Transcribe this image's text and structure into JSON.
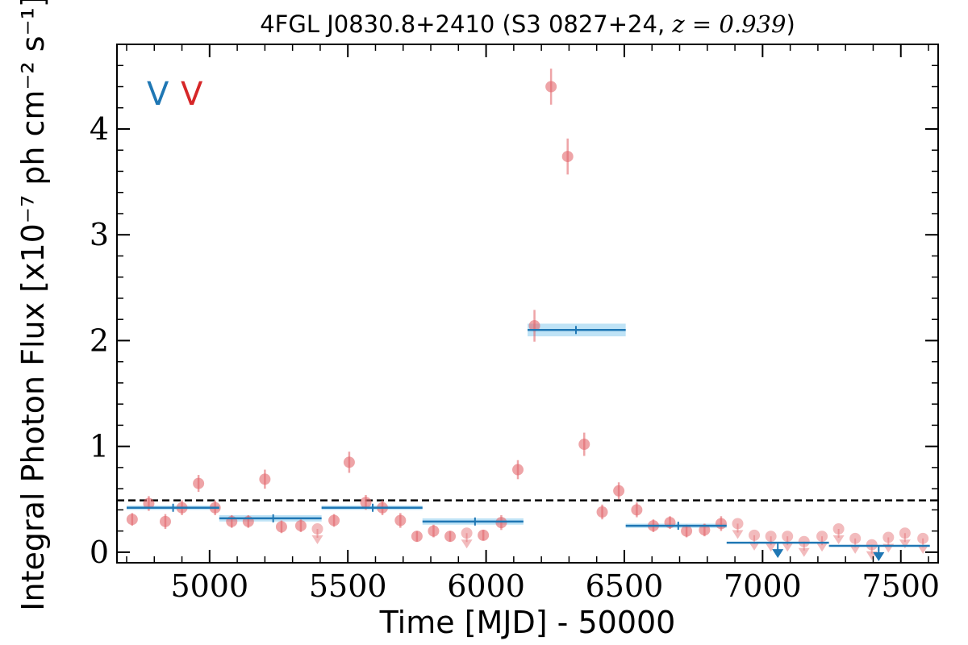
{
  "chart_data": {
    "type": "scatter",
    "title_prefix": "4FGL J0830.8+2410 (S3 0827+24, ",
    "title_math": "z = 0.939",
    "title_suffix": ")",
    "xlabel": "Time [MJD] - 50000",
    "ylabel": "Integral Photon Flux [x10⁻⁷ ph cm⁻² s⁻¹]",
    "xlim": [
      4665,
      7635
    ],
    "ylim": [
      -0.1,
      4.8
    ],
    "xticks": [
      5000,
      5500,
      6000,
      6500,
      7000,
      7500
    ],
    "xtick_labels": [
      "5000",
      "5500",
      "6000",
      "6500",
      "7000",
      "7500"
    ],
    "yticks": [
      0,
      1,
      2,
      3,
      4
    ],
    "ytick_labels": [
      "0",
      "1",
      "2",
      "3",
      "4"
    ],
    "legend": {
      "placement": "top-left",
      "markers": [
        {
          "text": "V",
          "color": "#1f77b4"
        },
        {
          "text": "V",
          "color": "#d62728"
        }
      ]
    },
    "reference_line": {
      "y": 0.49,
      "style": "dashed",
      "color": "#000000"
    },
    "series": [
      {
        "color": "#1f77b4",
        "band_color": "#bfe3f6",
        "bins": [
          {
            "x_start": 4700,
            "x_end": 5035,
            "y": 0.42,
            "y_lo": 0.4,
            "y_hi": 0.44,
            "x_center": 4868
          },
          {
            "x_start": 5035,
            "x_end": 5405,
            "y": 0.32,
            "y_lo": 0.29,
            "y_hi": 0.35,
            "x_center": 5230
          },
          {
            "x_start": 5405,
            "x_end": 5770,
            "y": 0.42,
            "y_lo": 0.4,
            "y_hi": 0.44,
            "x_center": 5590
          },
          {
            "x_start": 5770,
            "x_end": 6135,
            "y": 0.29,
            "y_lo": 0.26,
            "y_hi": 0.32,
            "x_center": 5960
          },
          {
            "x_start": 6150,
            "x_end": 6505,
            "y": 2.1,
            "y_lo": 2.04,
            "y_hi": 2.16,
            "x_center": 6325
          },
          {
            "x_start": 6505,
            "x_end": 6870,
            "y": 0.25,
            "y_lo": 0.23,
            "y_hi": 0.27,
            "x_center": 6695
          },
          {
            "x_start": 6870,
            "x_end": 7240,
            "y": 0.09,
            "y_lo": 0.09,
            "y_hi": 0.09,
            "x_center": 7055,
            "upper_limit": true
          },
          {
            "x_start": 7240,
            "x_end": 7605,
            "y": 0.06,
            "y_lo": 0.06,
            "y_hi": 0.06,
            "x_center": 7420,
            "upper_limit": true
          }
        ]
      },
      {
        "color": "#e3686c",
        "points": [
          {
            "x": 4720,
            "y": 0.31,
            "err": 0.06
          },
          {
            "x": 4780,
            "y": 0.46,
            "err": 0.07
          },
          {
            "x": 4840,
            "y": 0.29,
            "err": 0.07
          },
          {
            "x": 4900,
            "y": 0.42,
            "err": 0.07
          },
          {
            "x": 4960,
            "y": 0.65,
            "err": 0.08
          },
          {
            "x": 5020,
            "y": 0.42,
            "err": 0.07
          },
          {
            "x": 5080,
            "y": 0.29,
            "err": 0.06
          },
          {
            "x": 5140,
            "y": 0.29,
            "err": 0.06
          },
          {
            "x": 5200,
            "y": 0.69,
            "err": 0.09
          },
          {
            "x": 5260,
            "y": 0.24,
            "err": 0.06
          },
          {
            "x": 5330,
            "y": 0.25,
            "err": 0.06
          },
          {
            "x": 5390,
            "y": 0.22,
            "upper_limit": true
          },
          {
            "x": 5450,
            "y": 0.3,
            "err": 0.06
          },
          {
            "x": 5505,
            "y": 0.85,
            "err": 0.1
          },
          {
            "x": 5565,
            "y": 0.47,
            "err": 0.07
          },
          {
            "x": 5625,
            "y": 0.42,
            "err": 0.07
          },
          {
            "x": 5690,
            "y": 0.3,
            "err": 0.07
          },
          {
            "x": 5750,
            "y": 0.15,
            "err": 0.05
          },
          {
            "x": 5810,
            "y": 0.2,
            "err": 0.06
          },
          {
            "x": 5870,
            "y": 0.15,
            "err": 0.05
          },
          {
            "x": 5930,
            "y": 0.18,
            "upper_limit": true
          },
          {
            "x": 5990,
            "y": 0.16,
            "err": 0.05
          },
          {
            "x": 6055,
            "y": 0.28,
            "err": 0.07
          },
          {
            "x": 6115,
            "y": 0.78,
            "err": 0.09
          },
          {
            "x": 6175,
            "y": 2.14,
            "err": 0.15
          },
          {
            "x": 6235,
            "y": 4.4,
            "err": 0.17
          },
          {
            "x": 6295,
            "y": 3.74,
            "err": 0.17
          },
          {
            "x": 6355,
            "y": 1.02,
            "err": 0.11
          },
          {
            "x": 6420,
            "y": 0.38,
            "err": 0.07
          },
          {
            "x": 6480,
            "y": 0.58,
            "err": 0.08
          },
          {
            "x": 6545,
            "y": 0.4,
            "err": 0.07
          },
          {
            "x": 6605,
            "y": 0.25,
            "err": 0.06
          },
          {
            "x": 6665,
            "y": 0.28,
            "err": 0.06
          },
          {
            "x": 6725,
            "y": 0.2,
            "err": 0.06
          },
          {
            "x": 6790,
            "y": 0.21,
            "err": 0.06
          },
          {
            "x": 6850,
            "y": 0.27,
            "err": 0.07
          },
          {
            "x": 6910,
            "y": 0.27,
            "upper_limit": true
          },
          {
            "x": 6970,
            "y": 0.16,
            "upper_limit": true
          },
          {
            "x": 7030,
            "y": 0.15,
            "upper_limit": true
          },
          {
            "x": 7090,
            "y": 0.15,
            "upper_limit": true
          },
          {
            "x": 7150,
            "y": 0.1,
            "upper_limit": true
          },
          {
            "x": 7215,
            "y": 0.15,
            "upper_limit": true
          },
          {
            "x": 7275,
            "y": 0.22,
            "upper_limit": true
          },
          {
            "x": 7335,
            "y": 0.13,
            "upper_limit": true
          },
          {
            "x": 7395,
            "y": 0.07,
            "upper_limit": true
          },
          {
            "x": 7455,
            "y": 0.14,
            "upper_limit": true
          },
          {
            "x": 7515,
            "y": 0.18,
            "upper_limit": true
          },
          {
            "x": 7580,
            "y": 0.13,
            "upper_limit": true
          }
        ]
      }
    ]
  }
}
